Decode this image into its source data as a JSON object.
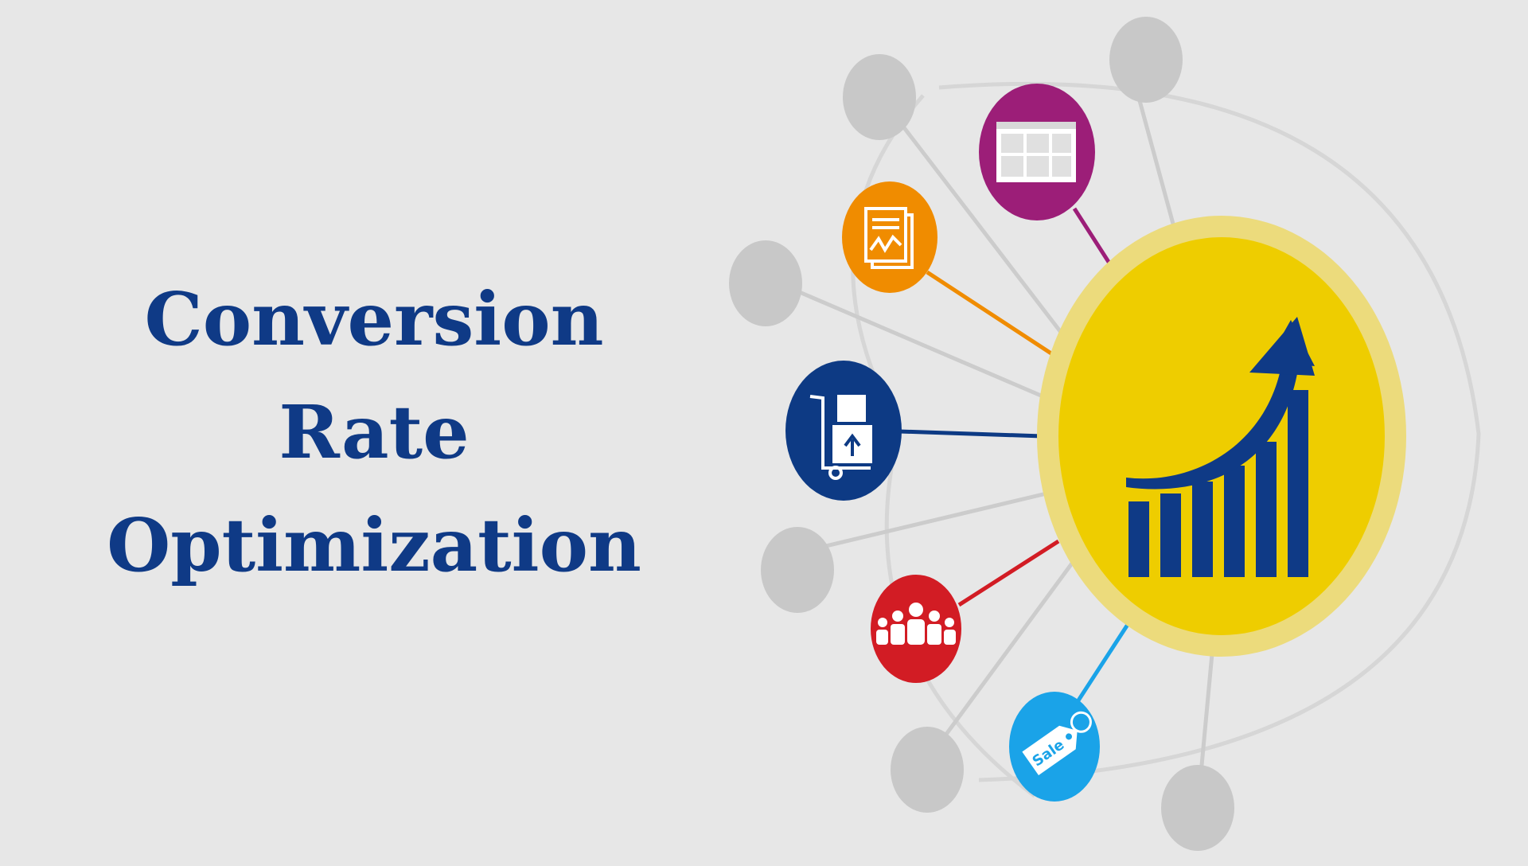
{
  "title": {
    "line1": "Conversion",
    "line2": "Rate",
    "line3": "Optimization"
  },
  "hub": {
    "icon": "growth-chart-icon",
    "colors": {
      "fill": "#eecd00",
      "ring": "#ecdb7c",
      "icon": "#0f3a86"
    }
  },
  "nodes": [
    {
      "icon": "web-page-icon",
      "color": "#9c1e78"
    },
    {
      "icon": "report-document-icon",
      "color": "#f08c00"
    },
    {
      "icon": "delivery-trolley-icon",
      "color": "#0d3a84"
    },
    {
      "icon": "audience-group-icon",
      "color": "#d21c24"
    },
    {
      "icon": "sale-tag-icon",
      "color": "#1aa3e8"
    }
  ],
  "sale_tag_text": "Sale"
}
